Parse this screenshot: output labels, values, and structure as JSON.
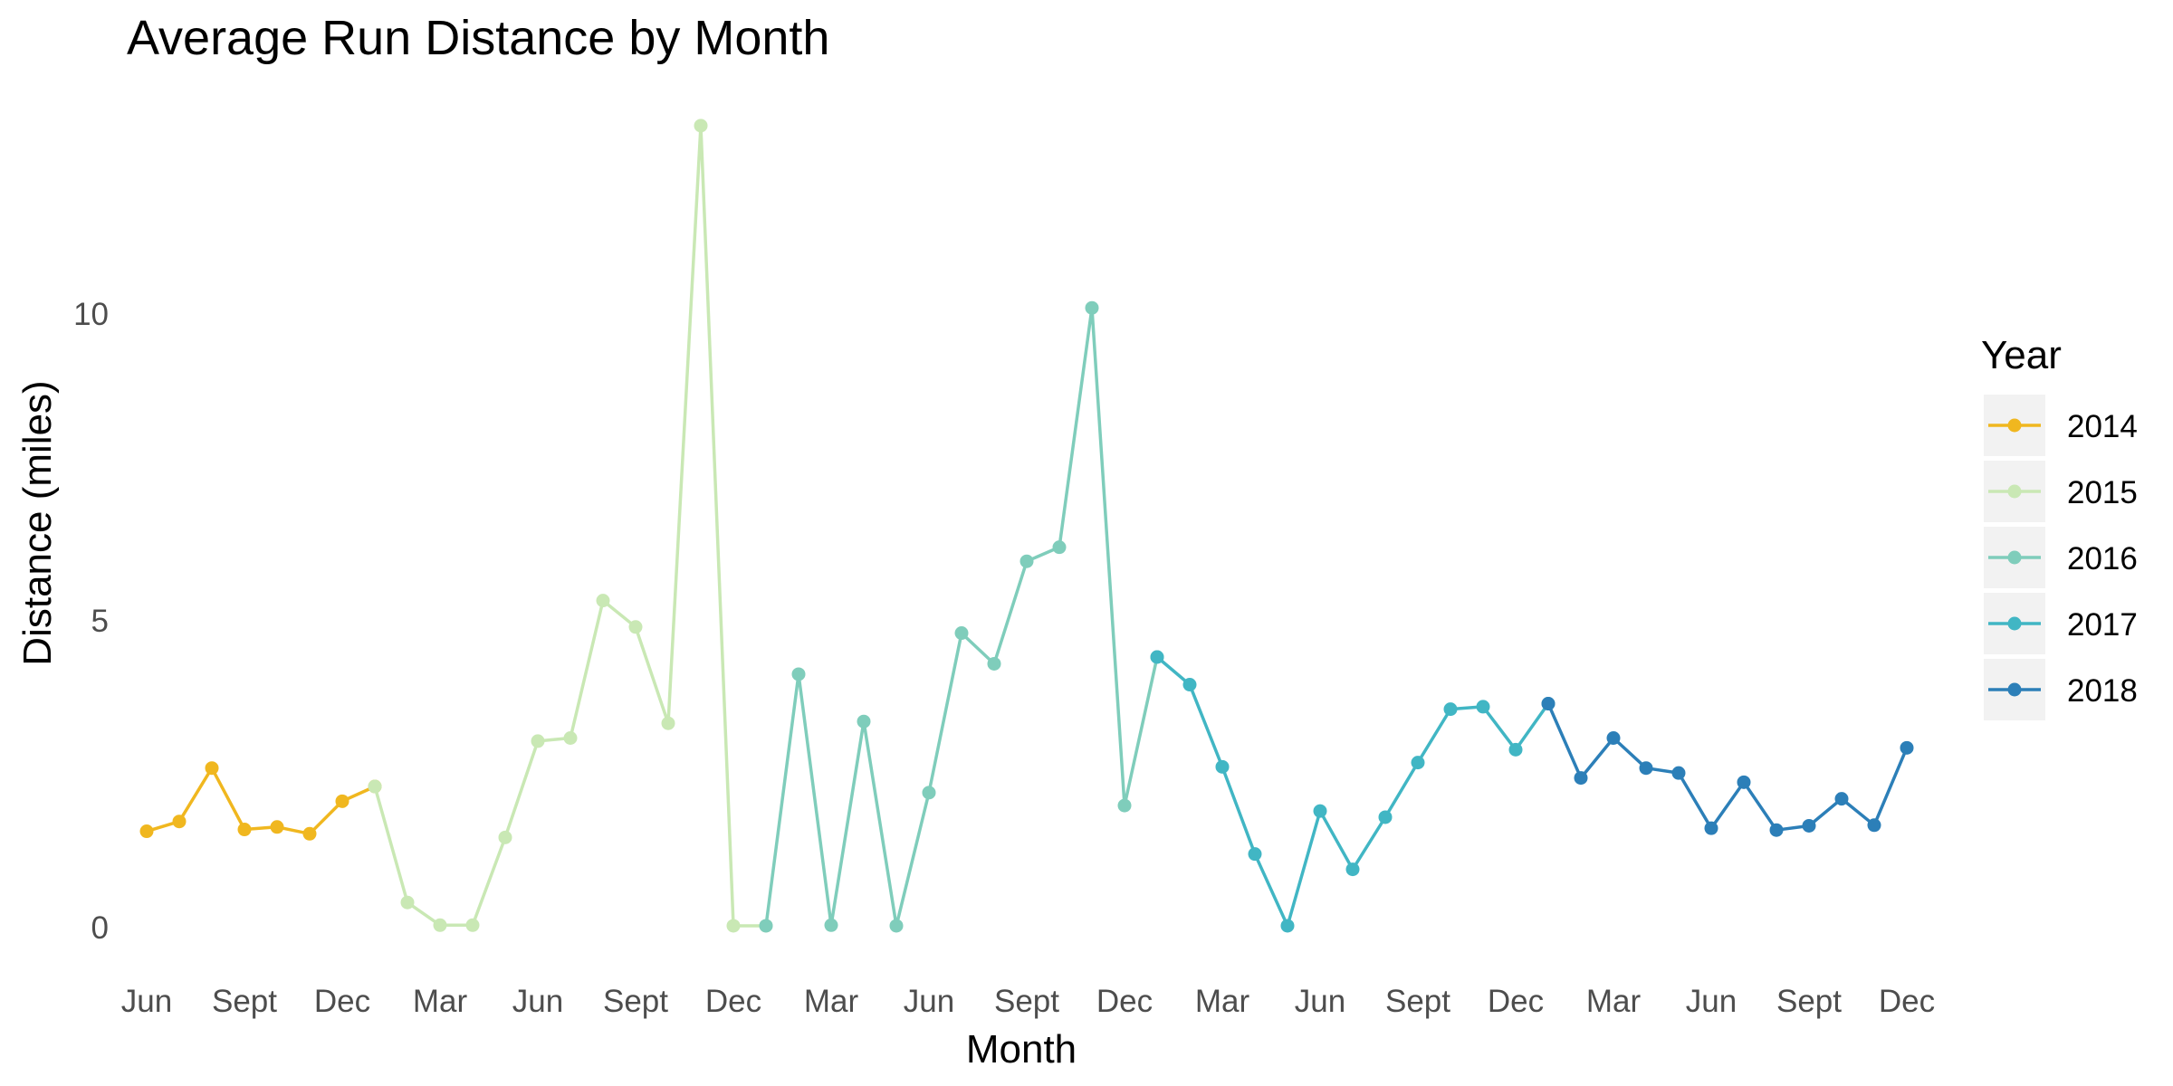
{
  "chart_data": {
    "type": "line",
    "title": "Average Run Distance by Month",
    "xlabel": "Month",
    "ylabel": "Distance (miles)",
    "ylim": [
      0,
      13.2
    ],
    "y_ticks": [
      0,
      5,
      10
    ],
    "y_tick_labels": [
      "0",
      "5",
      "10"
    ],
    "x_tick_labels": [
      "Jun",
      "Sept",
      "Dec",
      "Mar",
      "Jun",
      "Sept",
      "Dec",
      "Mar",
      "Jun",
      "Sept",
      "Dec",
      "Mar",
      "Jun",
      "Sept",
      "Dec",
      "Mar",
      "Jun",
      "Sept",
      "Dec"
    ],
    "grid": false,
    "legend": {
      "title": "Year",
      "position": "right"
    },
    "series": [
      {
        "name": "2014",
        "color": "#F0B71F",
        "x": [
          "2014-06",
          "2014-07",
          "2014-08",
          "2014-09",
          "2014-10",
          "2014-11",
          "2014-12",
          "2015-01"
        ],
        "values": [
          1.57,
          1.73,
          2.6,
          1.6,
          1.64,
          1.53,
          2.06,
          2.3
        ]
      },
      {
        "name": "2015",
        "color": "#C9E8B4",
        "x": [
          "2015-01",
          "2015-02",
          "2015-03",
          "2015-04",
          "2015-05",
          "2015-06",
          "2015-07",
          "2015-08",
          "2015-09",
          "2015-10",
          "2015-11",
          "2015-12",
          "2016-01"
        ],
        "values": [
          2.3,
          0.41,
          0.04,
          0.04,
          1.47,
          3.04,
          3.09,
          5.33,
          4.9,
          3.33,
          13.07,
          0.03,
          0.03
        ]
      },
      {
        "name": "2016",
        "color": "#7FCDBB",
        "x": [
          "2016-01",
          "2016-02",
          "2016-03",
          "2016-04",
          "2016-05",
          "2016-06",
          "2016-07",
          "2016-08",
          "2016-09",
          "2016-10",
          "2016-11",
          "2016-12",
          "2017-01"
        ],
        "values": [
          0.03,
          4.13,
          0.04,
          3.36,
          0.03,
          2.2,
          4.8,
          4.3,
          5.97,
          6.2,
          10.1,
          1.99,
          4.41
        ]
      },
      {
        "name": "2017",
        "color": "#41B6C4",
        "x": [
          "2017-01",
          "2017-02",
          "2017-03",
          "2017-04",
          "2017-05",
          "2017-06",
          "2017-07",
          "2017-08",
          "2017-09",
          "2017-10",
          "2017-11",
          "2017-12",
          "2018-01"
        ],
        "values": [
          4.41,
          3.96,
          2.62,
          1.2,
          0.03,
          1.9,
          0.95,
          1.8,
          2.69,
          3.56,
          3.6,
          2.9,
          3.65
        ]
      },
      {
        "name": "2018",
        "color": "#2C7FB8",
        "x": [
          "2018-01",
          "2018-02",
          "2018-03",
          "2018-04",
          "2018-05",
          "2018-06",
          "2018-07",
          "2018-08",
          "2018-09",
          "2018-10",
          "2018-11",
          "2018-12"
        ],
        "values": [
          3.65,
          2.44,
          3.09,
          2.6,
          2.52,
          1.62,
          2.37,
          1.59,
          1.66,
          2.1,
          1.67,
          2.93
        ]
      }
    ]
  }
}
